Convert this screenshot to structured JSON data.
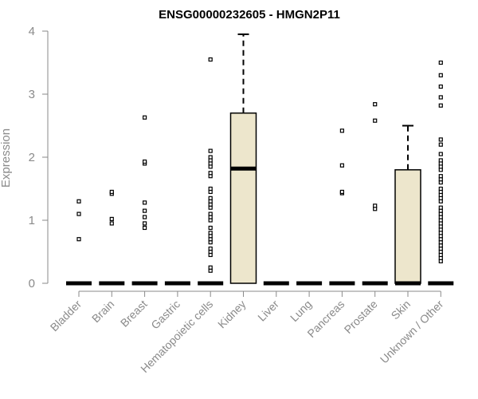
{
  "chart_data": {
    "type": "box",
    "title": "ENSG00000232605 - HMGN2P11",
    "xlabel": "",
    "ylabel": "Expression",
    "ylim": [
      0,
      4
    ],
    "yticks": [
      0,
      1,
      2,
      3,
      4
    ],
    "box_fill": "#ede6cc",
    "grid": false,
    "categories": [
      "Bladder",
      "Brain",
      "Breast",
      "Gastric",
      "Hematopoietic cells",
      "Kidney",
      "Liver",
      "Lung",
      "Pancreas",
      "Prostate",
      "Skin",
      "Unknown / Other"
    ],
    "boxes": [
      {
        "min": 0,
        "q1": 0,
        "median": 0,
        "q3": 0,
        "max": 0,
        "outliers": [
          0.7,
          1.1,
          1.3
        ]
      },
      {
        "min": 0,
        "q1": 0,
        "median": 0,
        "q3": 0,
        "max": 0,
        "outliers": [
          0.95,
          1.02,
          1.42,
          1.45
        ]
      },
      {
        "min": 0,
        "q1": 0,
        "median": 0,
        "q3": 0,
        "max": 0,
        "outliers": [
          0.88,
          0.95,
          1.05,
          1.15,
          1.28,
          1.9,
          1.93,
          2.63
        ]
      },
      {
        "min": 0,
        "q1": 0,
        "median": 0,
        "q3": 0,
        "max": 0,
        "outliers": []
      },
      {
        "min": 0,
        "q1": 0,
        "median": 0,
        "q3": 0,
        "max": 0,
        "outliers": [
          0.2,
          0.25,
          0.45,
          0.5,
          0.55,
          0.65,
          0.7,
          0.75,
          0.8,
          0.88,
          1.0,
          1.05,
          1.1,
          1.2,
          1.25,
          1.3,
          1.35,
          1.45,
          1.5,
          1.7,
          1.75,
          1.85,
          1.9,
          1.95,
          2.0,
          2.1,
          3.55
        ]
      },
      {
        "min": 0,
        "q1": 0,
        "median": 1.82,
        "q3": 2.7,
        "max": 3.95,
        "outliers": []
      },
      {
        "min": 0,
        "q1": 0,
        "median": 0,
        "q3": 0,
        "max": 0,
        "outliers": []
      },
      {
        "min": 0,
        "q1": 0,
        "median": 0,
        "q3": 0,
        "max": 0,
        "outliers": []
      },
      {
        "min": 0,
        "q1": 0,
        "median": 0,
        "q3": 0,
        "max": 0,
        "outliers": [
          1.43,
          1.45,
          1.87,
          2.42
        ]
      },
      {
        "min": 0,
        "q1": 0,
        "median": 0,
        "q3": 0,
        "max": 0,
        "outliers": [
          1.18,
          1.23,
          2.58,
          2.84
        ]
      },
      {
        "min": 0,
        "q1": 0,
        "median": 0,
        "q3": 1.8,
        "max": 2.5,
        "outliers": []
      },
      {
        "min": 0,
        "q1": 0,
        "median": 0,
        "q3": 0,
        "max": 0,
        "outliers": [
          0.35,
          0.4,
          0.45,
          0.5,
          0.55,
          0.6,
          0.65,
          0.7,
          0.75,
          0.8,
          0.85,
          0.9,
          0.95,
          1.0,
          1.05,
          1.1,
          1.15,
          1.2,
          1.3,
          1.35,
          1.4,
          1.45,
          1.5,
          1.6,
          1.65,
          1.7,
          1.8,
          1.85,
          1.9,
          1.95,
          2.05,
          2.2,
          2.28,
          2.82,
          2.95,
          3.12,
          3.3,
          3.5
        ]
      }
    ]
  }
}
